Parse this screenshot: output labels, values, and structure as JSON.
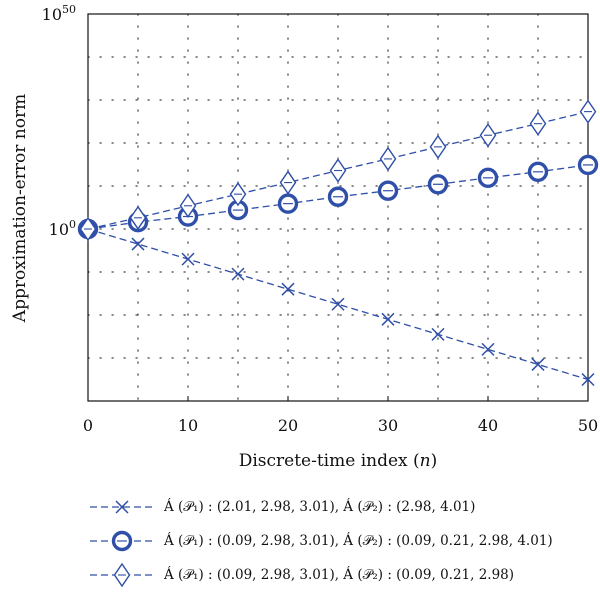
{
  "chart_data": {
    "type": "line",
    "xlabel": "Discrete-time index (n)",
    "ylabel": "Approximation-error norm",
    "x_ticks": [
      "0",
      "10",
      "20",
      "30",
      "40",
      "50"
    ],
    "y_ticks": [
      {
        "base": "10",
        "exp": "0",
        "value": 0
      },
      {
        "base": "10",
        "exp": "50",
        "value": 50
      }
    ],
    "xlim": [
      0,
      50
    ],
    "y_scale": "log10",
    "ylim_exponent": [
      -40,
      50
    ],
    "grid": true,
    "legend_position": "bottom",
    "x": [
      0,
      5,
      10,
      15,
      20,
      25,
      30,
      35,
      40,
      45,
      50
    ],
    "series": [
      {
        "name": "Á (𝒫₁) : (2.01, 2.98, 3.01), Á (𝒫₂) : (2.98, 4.01)",
        "marker": "x",
        "log10_values": [
          0,
          -3.5,
          -7,
          -10.5,
          -14,
          -17.5,
          -21,
          -24.5,
          -28,
          -31.5,
          -35
        ]
      },
      {
        "name": "Á (𝒫₁) : (0.09, 2.98, 3.01), Á (𝒫₂) : (0.09, 0.21, 2.98, 4.01)",
        "marker": "circle",
        "log10_values": [
          0,
          1.6,
          2.9,
          4.4,
          5.9,
          7.5,
          8.9,
          10.4,
          11.9,
          13.3,
          14.9
        ]
      },
      {
        "name": "Á (𝒫₁) : (0.09, 2.98, 3.01), Á (𝒫₂) : (0.09, 0.21, 2.98)",
        "marker": "diamond",
        "log10_values": [
          0,
          2.6,
          5.4,
          8.1,
          10.8,
          13.6,
          16.3,
          19.1,
          21.8,
          24.5,
          27.3
        ]
      }
    ],
    "color": "#2f4fa8"
  }
}
